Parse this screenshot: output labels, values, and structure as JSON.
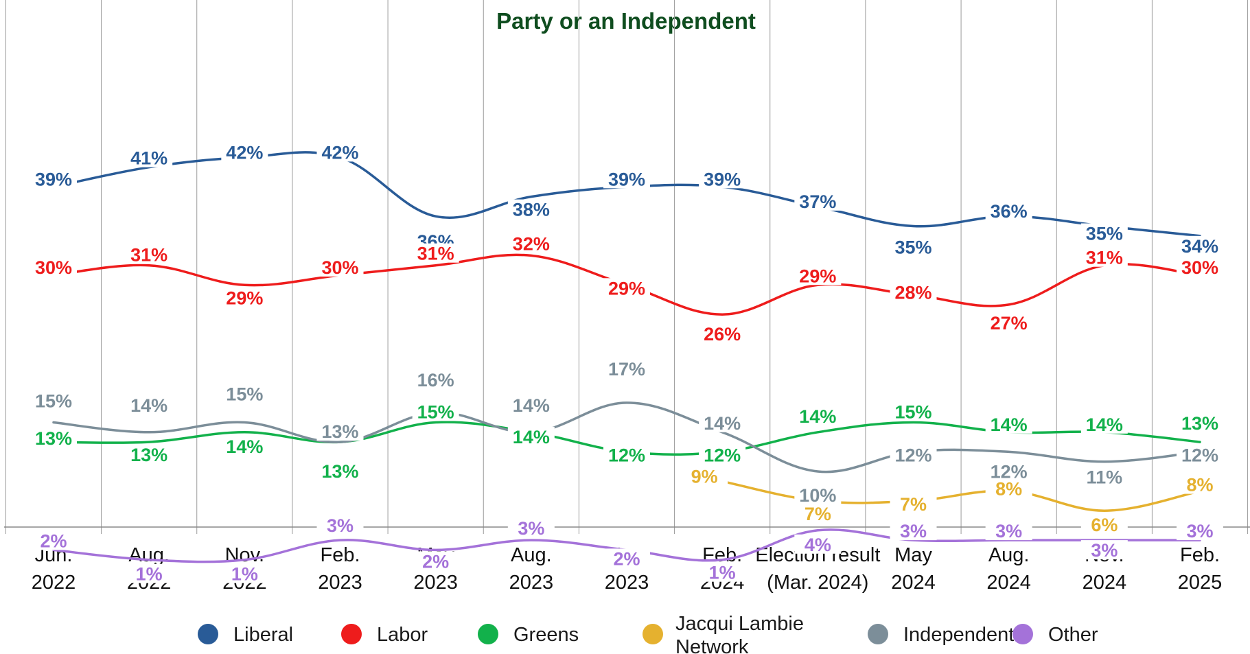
{
  "chart_data": {
    "type": "line",
    "title": "Party or an Independent",
    "categories": [
      [
        "Jun.",
        "2022"
      ],
      [
        "Aug.",
        "2022"
      ],
      [
        "Nov.",
        "2022"
      ],
      [
        "Feb.",
        "2023"
      ],
      [
        "May",
        "2023"
      ],
      [
        "Aug.",
        "2023"
      ],
      [
        "Nov.",
        "2023"
      ],
      [
        "Feb.",
        "2024"
      ],
      [
        "Election result",
        "(Mar. 2024)"
      ],
      [
        "May",
        "2024"
      ],
      [
        "Aug.",
        "2024"
      ],
      [
        "Nov.",
        "2024"
      ],
      [
        "Feb.",
        "2025"
      ]
    ],
    "series": [
      {
        "name": "Liberal",
        "color": "#295b97",
        "values": [
          39,
          41,
          42,
          42,
          36,
          38,
          39,
          39,
          37,
          35,
          36,
          35,
          34
        ]
      },
      {
        "name": "Labor",
        "color": "#ee1c1c",
        "values": [
          30,
          31,
          29,
          30,
          31,
          32,
          29,
          26,
          29,
          28,
          27,
          31,
          30
        ]
      },
      {
        "name": "Greens",
        "color": "#12b14b",
        "values": [
          13,
          13,
          14,
          13,
          15,
          14,
          12,
          12,
          14,
          15,
          14,
          14,
          13
        ]
      },
      {
        "name": "Jacqui Lambie Network",
        "color": "#e5b12f",
        "values": [
          null,
          null,
          null,
          null,
          null,
          null,
          null,
          9,
          7,
          7,
          8,
          6,
          8
        ]
      },
      {
        "name": "Independent",
        "color": "#7c8e99",
        "values": [
          15,
          14,
          15,
          13,
          16,
          14,
          17,
          14,
          10,
          12,
          12,
          11,
          12
        ]
      },
      {
        "name": "Other",
        "color": "#a472d9",
        "values": [
          2,
          1,
          1,
          3,
          2,
          3,
          2,
          1,
          4,
          3,
          3,
          3,
          3
        ]
      }
    ],
    "value_suffix": "%",
    "legend": {
      "placement": "bottom",
      "entries": [
        "Liberal",
        "Labor",
        "Greens",
        "Jacqui Lambie Network",
        "Independent",
        "Other"
      ]
    },
    "grid": "vertical",
    "ylim": [
      0,
      50
    ]
  }
}
